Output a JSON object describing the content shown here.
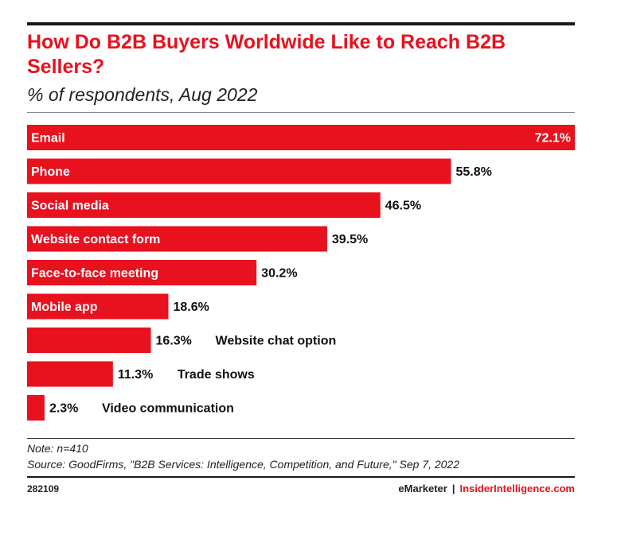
{
  "header": {
    "title": "How Do B2B Buyers Worldwide Like to Reach B2B Sellers?",
    "subtitle": "% of respondents, Aug 2022"
  },
  "colors": {
    "accent": "#e8111e",
    "text": "#111111"
  },
  "chart_data": {
    "type": "bar",
    "orientation": "horizontal",
    "title": "How Do B2B Buyers Worldwide Like to Reach B2B Sellers?",
    "subtitle": "% of respondents, Aug 2022",
    "categories": [
      "Email",
      "Phone",
      "Social media",
      "Website contact form",
      "Face-to-face meeting",
      "Mobile app",
      "Website chat option",
      "Trade shows",
      "Video communication"
    ],
    "values": [
      72.1,
      55.8,
      46.5,
      39.5,
      30.2,
      18.6,
      16.3,
      11.3,
      2.3
    ],
    "value_labels": [
      "72.1%",
      "55.8%",
      "46.5%",
      "39.5%",
      "30.2%",
      "18.6%",
      "16.3%",
      "11.3%",
      "2.3%"
    ],
    "xlim": [
      0,
      72.1
    ],
    "grid": false,
    "legend": "none",
    "bar_color": "#e8111e"
  },
  "footer": {
    "note": "Note: n=410",
    "source": "Source: GoodFirms, \"B2B Services: Intelligence, Competition, and Future,\" Sep 7, 2022",
    "chart_id": "282109",
    "brand_left": "eMarketer",
    "brand_sep": "|",
    "brand_right": "InsiderIntelligence.com"
  }
}
